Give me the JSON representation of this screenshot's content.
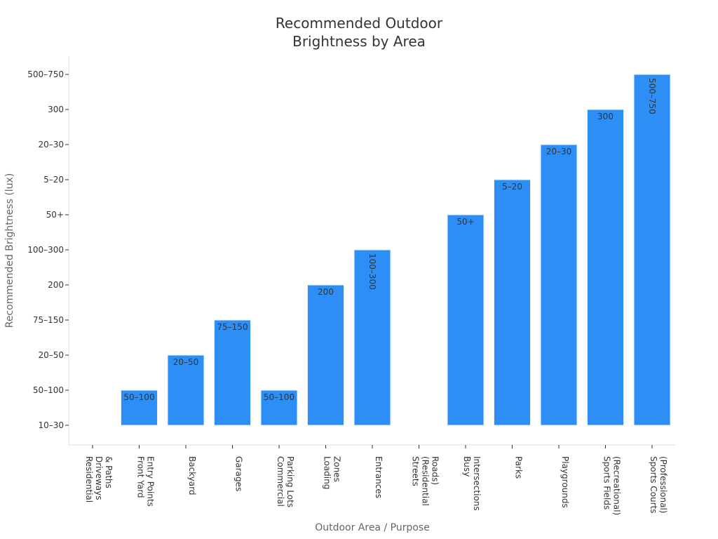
{
  "colors": {
    "bar": "#2d8ff5",
    "axis": "#dddddd",
    "text": "#333333",
    "muted": "#666666"
  },
  "chart_data": {
    "type": "bar",
    "title": "Recommended Outdoor Brightness by Area",
    "title_lines": [
      "Recommended Outdoor",
      "Brightness by Area"
    ],
    "xlabel": "Outdoor Area / Purpose",
    "ylabel": "Recommended Brightness (lux)",
    "y_categories": [
      "10–30",
      "50–100",
      "20–50",
      "75–150",
      "200",
      "100–300",
      "50+",
      "5–20",
      "20–30",
      "300",
      "500–750"
    ],
    "categories": [
      [
        "Residential",
        "Driveways",
        "& Paths"
      ],
      [
        "Front Yard",
        "Entry Points"
      ],
      [
        "Backyard"
      ],
      [
        "Garages"
      ],
      [
        "Commercial",
        "Parking Lots"
      ],
      [
        "Loading",
        "Zones"
      ],
      [
        "Entrances"
      ],
      [
        "Streets",
        "(Residential",
        "Roads)"
      ],
      [
        "Busy",
        "Intersections"
      ],
      [
        "Parks"
      ],
      [
        "Playgrounds"
      ],
      [
        "Sports Fields",
        "(Recreational)"
      ],
      [
        "Sports Courts",
        "(Professional)"
      ]
    ],
    "values": [
      "10–30",
      "50–100",
      "20–50",
      "75–150",
      "50–100",
      "200",
      "100–300",
      "10–30",
      "50+",
      "5–20",
      "20–30",
      "300",
      "500–750"
    ],
    "value_index": [
      0,
      1,
      2,
      3,
      1,
      4,
      5,
      0,
      6,
      7,
      8,
      9,
      10
    ],
    "show_label": [
      false,
      true,
      true,
      true,
      true,
      true,
      true,
      false,
      true,
      true,
      true,
      true,
      true
    ],
    "vertical_label": [
      false,
      false,
      false,
      false,
      false,
      false,
      true,
      false,
      false,
      false,
      false,
      false,
      true
    ],
    "grid": false,
    "legend": "none"
  }
}
